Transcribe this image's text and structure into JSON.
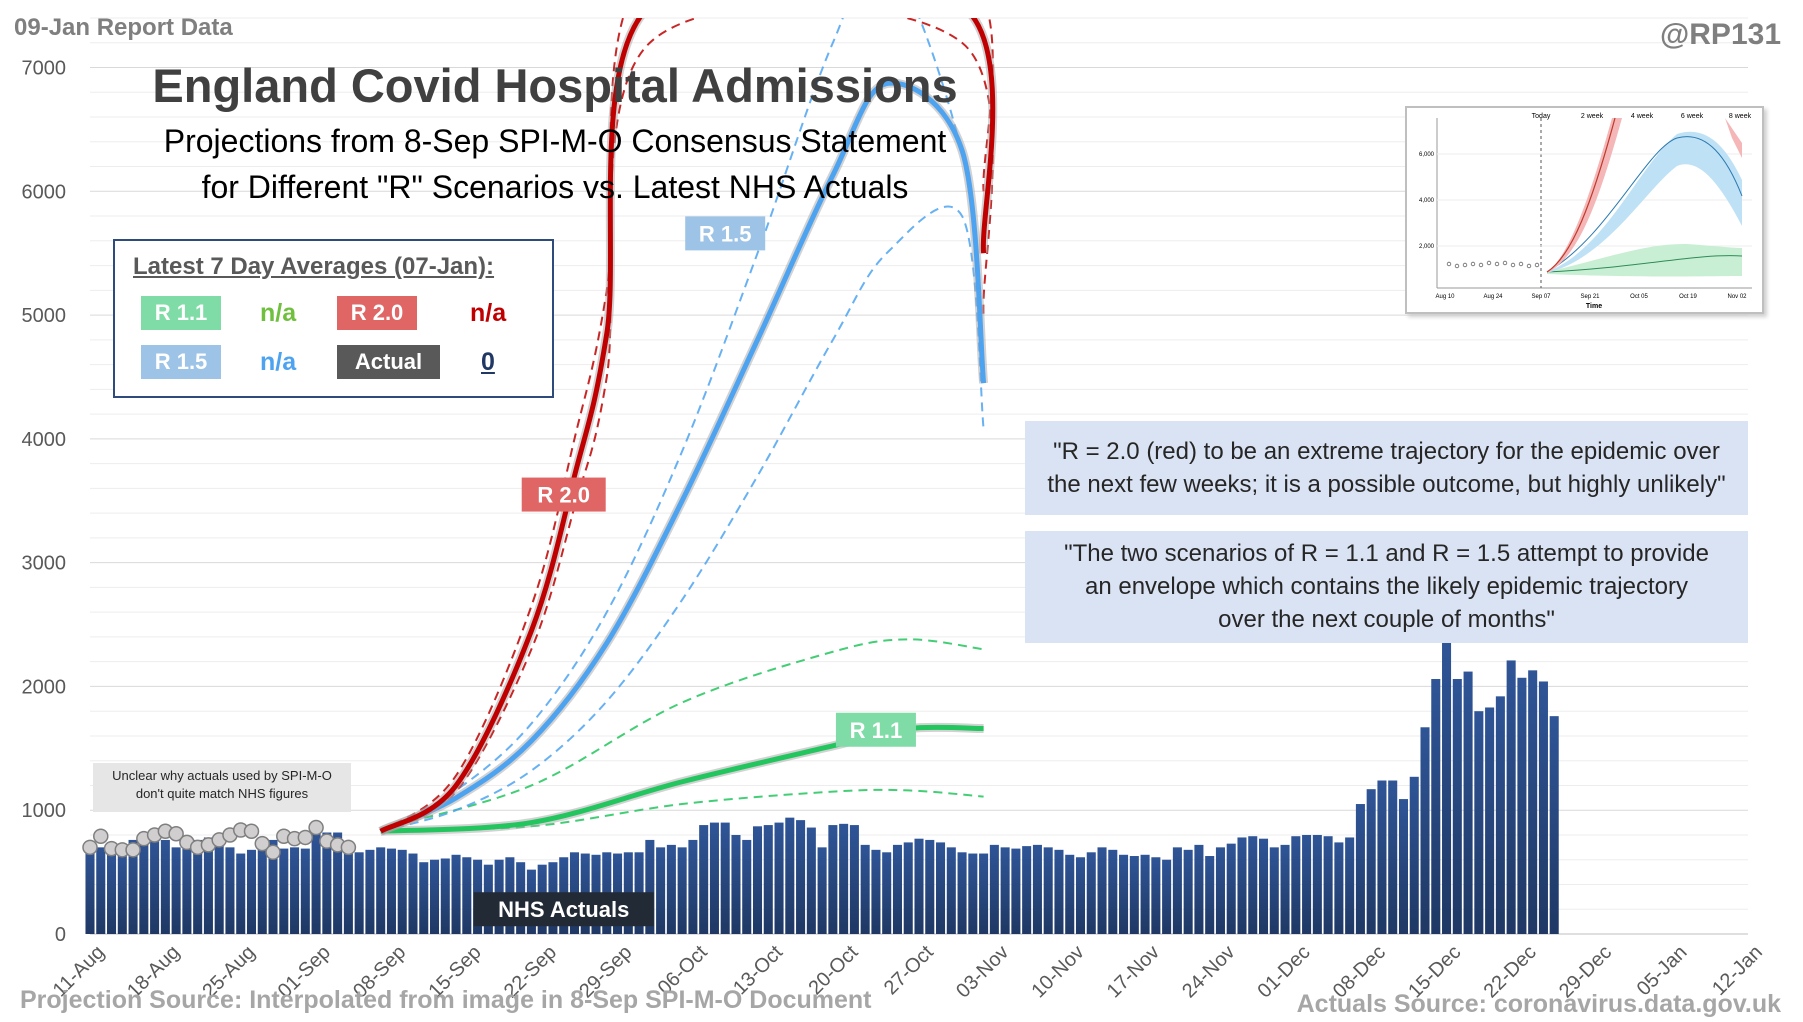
{
  "header": {
    "report_date": "09-Jan Report Data",
    "handle": "@RP131",
    "title": "England Covid Hospital Admissions",
    "subtitle_line1": "Projections from 8-Sep SPI-M-O Consensus Statement",
    "subtitle_line2": "for Different \"R\" Scenarios vs. Latest NHS Actuals"
  },
  "averages_box": {
    "title": "Latest 7 Day Averages (07-Jan):",
    "r11_label": "R 1.1",
    "r11_value": "n/a",
    "r20_label": "R 2.0",
    "r20_value": "n/a",
    "r15_label": "R 1.5",
    "r15_value": "n/a",
    "actual_label": "Actual",
    "actual_value": "0"
  },
  "quotes": {
    "q1_line1": "\"R = 2.0 (red) to be an extreme trajectory for the epidemic over",
    "q1_line2": "the next few weeks; it is a possible outcome, but highly unlikely\"",
    "q2_line1": "\"The two scenarios of R = 1.1 and R = 1.5 attempt to provide",
    "q2_line2": "an envelope which contains the likely epidemic trajectory",
    "q2_line3": "over the next couple of months\""
  },
  "note": {
    "line1": "Unclear why actuals used by SPI-M-O",
    "line2": "don't quite match NHS figures"
  },
  "footer": {
    "projection_source": "Projection Source: Interpolated from image in 8-Sep SPI-M-O Document",
    "actuals_source": "Actuals Source: coronavirus.data.gov.uk"
  },
  "inset": {
    "top_labels": [
      "Today",
      "2 week",
      "4 week",
      "6 week",
      "8 week"
    ],
    "y_labels": [
      "6,000",
      "4,000",
      "2,000"
    ],
    "x_labels": [
      "Aug 10",
      "Aug 24",
      "Sep 07",
      "Sep 21",
      "Oct 05",
      "Oct 19",
      "Nov 02"
    ],
    "x_title": "Time"
  },
  "colors": {
    "bar": "#2f5597",
    "r20": "#c00000",
    "r15": "#4da3f0",
    "r11": "#22c55e",
    "r20_chip": "#e06666",
    "r15_chip": "#9dc3e6",
    "r11_chip": "#7fdca6",
    "actual_chip": "#595959"
  },
  "chart_data": {
    "type": "bar",
    "title": "England Covid Hospital Admissions",
    "x_tick_labels": [
      "11-Aug",
      "18-Aug",
      "25-Aug",
      "01-Sep",
      "08-Sep",
      "15-Sep",
      "22-Sep",
      "29-Sep",
      "06-Oct",
      "13-Oct",
      "20-Oct",
      "27-Oct",
      "03-Nov",
      "10-Nov",
      "17-Nov",
      "24-Nov",
      "01-Dec",
      "08-Dec",
      "15-Dec",
      "22-Dec",
      "29-Dec",
      "05-Jan",
      "12-Jan"
    ],
    "x_range": [
      "2020-08-11",
      "2021-01-12"
    ],
    "y_ticks": [
      0,
      1000,
      2000,
      3000,
      4000,
      5000,
      6000,
      7000
    ],
    "ylim": [
      0,
      7400
    ],
    "grid": "horizontal",
    "bar_series": {
      "name": "NHS Actuals",
      "start_date": "2020-08-11",
      "values": [
        720,
        700,
        650,
        640,
        760,
        780,
        800,
        760,
        700,
        720,
        760,
        780,
        760,
        700,
        650,
        680,
        700,
        760,
        690,
        700,
        690,
        830,
        820,
        820,
        720,
        660,
        680,
        700,
        690,
        680,
        650,
        580,
        600,
        610,
        640,
        620,
        600,
        560,
        600,
        620,
        580,
        520,
        560,
        580,
        620,
        660,
        650,
        640,
        660,
        650,
        660,
        660,
        760,
        700,
        720,
        700,
        760,
        880,
        900,
        900,
        800,
        760,
        870,
        880,
        900,
        940,
        920,
        860,
        700,
        880,
        890,
        880,
        720,
        680,
        660,
        720,
        740,
        770,
        760,
        740,
        700,
        660,
        650,
        650,
        720,
        700,
        690,
        710,
        720,
        700,
        680,
        640,
        620,
        660,
        700,
        680,
        640,
        630,
        640,
        620,
        600,
        700,
        680,
        720,
        630,
        700,
        730,
        780,
        790,
        770,
        700,
        720,
        790,
        800,
        800,
        790,
        740,
        780,
        1050,
        1170,
        1240,
        1240,
        1090,
        1270,
        1670,
        2060,
        2370,
        2060,
        2120,
        1800,
        1830,
        1920,
        2210,
        2070,
        2130,
        2040,
        1760
      ]
    },
    "scatter_series": {
      "name": "SPI-M-O actuals",
      "start_date": "2020-08-11",
      "values": [
        700,
        790,
        690,
        680,
        680,
        770,
        800,
        830,
        810,
        740,
        700,
        720,
        760,
        800,
        840,
        830,
        730,
        660,
        790,
        770,
        780,
        860,
        750,
        720,
        700
      ]
    },
    "line_series": [
      {
        "name": "R 1.1",
        "dates": [
          "2020-09-07",
          "2020-09-21",
          "2020-10-05",
          "2020-10-19",
          "2020-10-26",
          "2020-11-02"
        ],
        "values": [
          830,
          900,
          1230,
          1520,
          1660,
          1660
        ],
        "lower": [
          840,
          870,
          1050,
          1150,
          1160,
          1110
        ],
        "upper": [
          850,
          1200,
          1870,
          2280,
          2380,
          2300
        ]
      },
      {
        "name": "R 1.5",
        "dates": [
          "2020-09-07",
          "2020-09-14",
          "2020-09-21",
          "2020-09-28",
          "2020-10-05",
          "2020-10-12",
          "2020-10-19",
          "2020-10-24",
          "2020-10-31",
          "2020-11-02"
        ],
        "values": [
          830,
          1100,
          1560,
          2350,
          3500,
          4800,
          6130,
          6870,
          6330,
          4450
        ],
        "lower": [
          830,
          1000,
          1320,
          1880,
          2700,
          3700,
          4800,
          5500,
          5800,
          4080
        ],
        "upper": [
          830,
          1160,
          1700,
          2600,
          3900,
          5500,
          7200,
          7900,
          6300,
          4550
        ]
      },
      {
        "name": "R 2.0",
        "dates": [
          "2020-09-07",
          "2020-09-14",
          "2020-09-21",
          "2020-09-25",
          "2020-09-28",
          "2020-10-02",
          "2020-10-31",
          "2020-11-02"
        ],
        "values": [
          830,
          1200,
          2450,
          3700,
          4850,
          7500,
          7500,
          5500
        ],
        "lower": [
          830,
          1150,
          2300,
          3450,
          4500,
          7200,
          7200,
          5000
        ],
        "upper": [
          830,
          1280,
          2650,
          4000,
          5200,
          7800,
          7800,
          6000
        ]
      }
    ],
    "annotations": [
      "R 2.0",
      "R 1.5",
      "R 1.1",
      "NHS Actuals"
    ]
  }
}
